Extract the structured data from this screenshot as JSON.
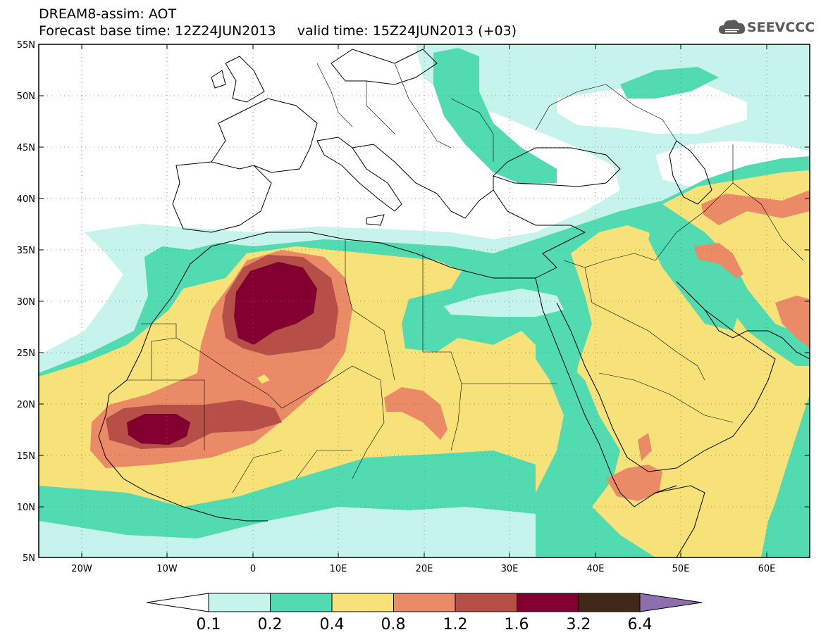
{
  "header": {
    "title_line1": "DREAM8-assim: AOT",
    "title_line2": "Forecast base time: 12Z24JUN2013     valid time: 15Z24JUN2013 (+03)"
  },
  "logo": {
    "text": "SEEVCCC",
    "icon": "cloud-icon",
    "color": "#5a5a5a"
  },
  "map": {
    "lon_range": [
      -25,
      65
    ],
    "lat_range": [
      5,
      55
    ],
    "lat_labels": [
      "55N",
      "50N",
      "45N",
      "40N",
      "35N",
      "30N",
      "25N",
      "20N",
      "15N",
      "10N",
      "5N"
    ],
    "lon_labels": [
      "20W",
      "10W",
      "0",
      "10E",
      "20E",
      "30E",
      "40E",
      "50E",
      "60E"
    ]
  },
  "colorbar": {
    "labels": [
      "0.1",
      "0.2",
      "0.4",
      "0.8",
      "1.2",
      "1.6",
      "3.2",
      "6.4"
    ],
    "colors": [
      "#ffffff",
      "#c6f3ec",
      "#52dbb0",
      "#f7e27a",
      "#eb8a66",
      "#b64f48",
      "#820030",
      "#412818",
      "#8e6eaf"
    ]
  }
}
